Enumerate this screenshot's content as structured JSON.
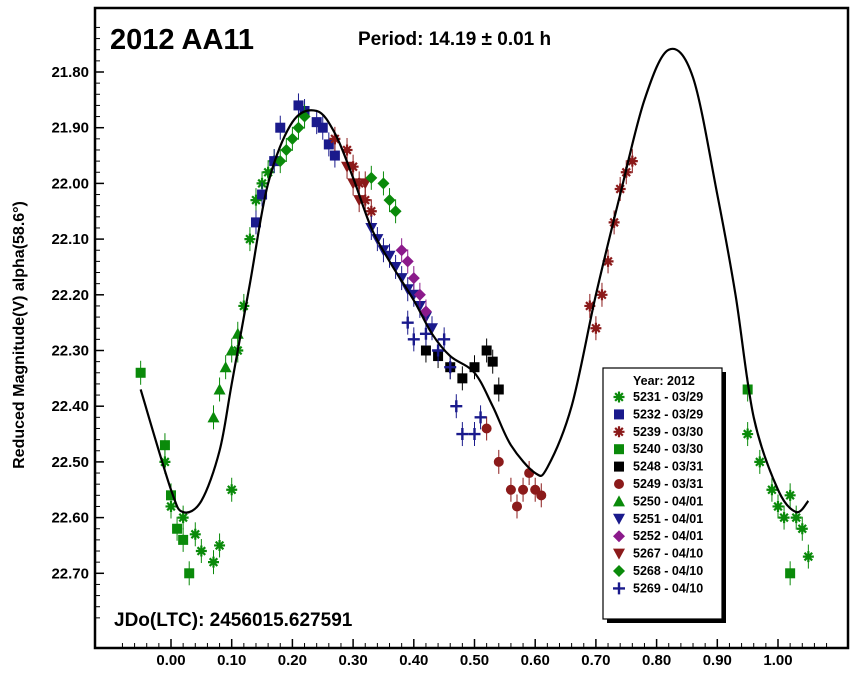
{
  "chart_data": {
    "type": "scatter",
    "title": "2012 AA11",
    "subtitle": "Period: 14.19 ± 0.01 h",
    "footnote": "JDo(LTC): 2456015.627591",
    "ylabel": "Reduced Magnitude(V) alpha(58.6°)",
    "xlabel": "",
    "xlim": [
      -0.1,
      1.13
    ],
    "ylim": [
      22.79,
      21.69
    ],
    "y_inverted": true,
    "x_ticks": [
      "0.00",
      "0.10",
      "0.20",
      "0.30",
      "0.40",
      "0.50",
      "0.60",
      "0.70",
      "0.80",
      "0.90",
      "1.00"
    ],
    "y_ticks": [
      "21.80",
      "21.90",
      "22.00",
      "22.10",
      "22.20",
      "22.30",
      "22.40",
      "22.50",
      "22.60",
      "22.70"
    ],
    "grid": false,
    "legend_position": "bottom-right",
    "legend_title": "Year: 2012",
    "fit_curve": {
      "name": "Fourier fit",
      "x": [
        -0.05,
        0.0,
        0.02,
        0.05,
        0.08,
        0.1,
        0.13,
        0.16,
        0.2,
        0.24,
        0.27,
        0.3,
        0.33,
        0.36,
        0.4,
        0.43,
        0.46,
        0.5,
        0.53,
        0.56,
        0.6,
        0.62,
        0.66,
        0.7,
        0.74,
        0.78,
        0.82,
        0.86,
        0.9,
        0.93,
        0.96,
        1.0,
        1.03,
        1.05
      ],
      "y": [
        22.37,
        22.55,
        22.59,
        22.57,
        22.48,
        22.36,
        22.18,
        22.0,
        21.89,
        21.87,
        21.91,
        21.99,
        22.08,
        22.14,
        22.21,
        22.27,
        22.31,
        22.34,
        22.4,
        22.47,
        22.52,
        22.51,
        22.4,
        22.2,
        22.02,
        21.85,
        21.76,
        21.81,
        22.02,
        22.2,
        22.42,
        22.55,
        22.59,
        22.57
      ]
    },
    "series": [
      {
        "name": "5231 - 03/29",
        "marker": "asterisk",
        "color": "#0a8a0a",
        "x": [
          -0.01,
          0.0,
          0.02,
          0.04,
          0.05,
          0.07,
          0.08,
          0.1,
          0.11,
          0.12,
          0.13,
          0.14,
          0.15,
          0.16,
          0.17,
          0.95,
          0.97,
          0.99,
          1.0,
          1.01,
          1.02,
          1.03,
          1.04,
          1.05
        ],
        "y": [
          22.5,
          22.58,
          22.6,
          22.63,
          22.66,
          22.68,
          22.65,
          22.55,
          22.3,
          22.22,
          22.1,
          22.03,
          22.0,
          21.98,
          21.96,
          22.45,
          22.5,
          22.55,
          22.58,
          22.6,
          22.56,
          22.6,
          22.62,
          22.67
        ]
      },
      {
        "name": "5232 - 03/29",
        "marker": "square",
        "color": "#1a1a8c",
        "x": [
          0.14,
          0.15,
          0.17,
          0.18,
          0.21,
          0.22,
          0.24,
          0.25,
          0.26,
          0.27
        ],
        "y": [
          22.07,
          22.02,
          21.96,
          21.9,
          21.86,
          21.87,
          21.89,
          21.9,
          21.93,
          21.95
        ]
      },
      {
        "name": "5239 - 03/30",
        "marker": "asterisk",
        "color": "#8b1a1a",
        "x": [
          0.27,
          0.29,
          0.3,
          0.31,
          0.32,
          0.33,
          0.69,
          0.7,
          0.71,
          0.72,
          0.73,
          0.74,
          0.75,
          0.76
        ],
        "y": [
          21.92,
          21.94,
          21.97,
          22.0,
          22.03,
          22.05,
          22.22,
          22.26,
          22.2,
          22.14,
          22.07,
          22.01,
          21.98,
          21.96
        ]
      },
      {
        "name": "5240 - 03/30",
        "marker": "square",
        "color": "#0a8a0a",
        "x": [
          -0.05,
          -0.01,
          0.0,
          0.01,
          0.02,
          0.03,
          0.95,
          1.02
        ],
        "y": [
          22.34,
          22.47,
          22.56,
          22.62,
          22.64,
          22.7,
          22.37,
          22.7
        ]
      },
      {
        "name": "5248 - 03/31",
        "marker": "square",
        "color": "#000000",
        "x": [
          0.42,
          0.44,
          0.46,
          0.48,
          0.5,
          0.52,
          0.53,
          0.54
        ],
        "y": [
          22.3,
          22.31,
          22.33,
          22.35,
          22.33,
          22.3,
          22.32,
          22.37
        ]
      },
      {
        "name": "5249 - 03/31",
        "marker": "circle",
        "color": "#8b1a1a",
        "x": [
          0.52,
          0.54,
          0.56,
          0.57,
          0.58,
          0.59,
          0.6,
          0.61
        ],
        "y": [
          22.44,
          22.5,
          22.55,
          22.58,
          22.55,
          22.52,
          22.55,
          22.56
        ]
      },
      {
        "name": "5250 - 04/01",
        "marker": "triangle-up",
        "color": "#0a8a0a",
        "x": [
          0.07,
          0.08,
          0.09,
          0.1,
          0.11
        ],
        "y": [
          22.42,
          22.37,
          22.33,
          22.3,
          22.27
        ]
      },
      {
        "name": "5251 - 04/01",
        "marker": "triangle-down",
        "color": "#1a1a8c",
        "x": [
          0.33,
          0.34,
          0.35,
          0.36,
          0.37,
          0.38,
          0.39,
          0.4,
          0.41,
          0.42,
          0.43
        ],
        "y": [
          22.08,
          22.1,
          22.12,
          22.13,
          22.15,
          22.17,
          22.19,
          22.2,
          22.22,
          22.24,
          22.26
        ]
      },
      {
        "name": "5252 - 04/01",
        "marker": "diamond",
        "color": "#8b1a8b",
        "x": [
          0.38,
          0.39,
          0.4,
          0.41,
          0.42
        ],
        "y": [
          22.12,
          22.14,
          22.17,
          22.2,
          22.23
        ]
      },
      {
        "name": "5267 - 04/10",
        "marker": "triangle-down",
        "color": "#8b1a1a",
        "x": [
          0.29,
          0.3,
          0.31,
          0.32
        ],
        "y": [
          21.97,
          22.0,
          22.03,
          22.0
        ]
      },
      {
        "name": "5268 - 04/10",
        "marker": "diamond",
        "color": "#0a8a0a",
        "x": [
          0.18,
          0.19,
          0.2,
          0.21,
          0.22,
          0.33,
          0.35,
          0.36,
          0.37
        ],
        "y": [
          21.96,
          21.94,
          21.92,
          21.9,
          21.88,
          21.99,
          22.0,
          22.03,
          22.05
        ]
      },
      {
        "name": "5269 - 04/10",
        "marker": "plus",
        "color": "#1a1a8c",
        "x": [
          0.39,
          0.4,
          0.42,
          0.44,
          0.45,
          0.46,
          0.47,
          0.48,
          0.5,
          0.51
        ],
        "y": [
          22.25,
          22.28,
          22.27,
          22.3,
          22.28,
          22.33,
          22.4,
          22.45,
          22.45,
          22.42
        ]
      }
    ]
  }
}
